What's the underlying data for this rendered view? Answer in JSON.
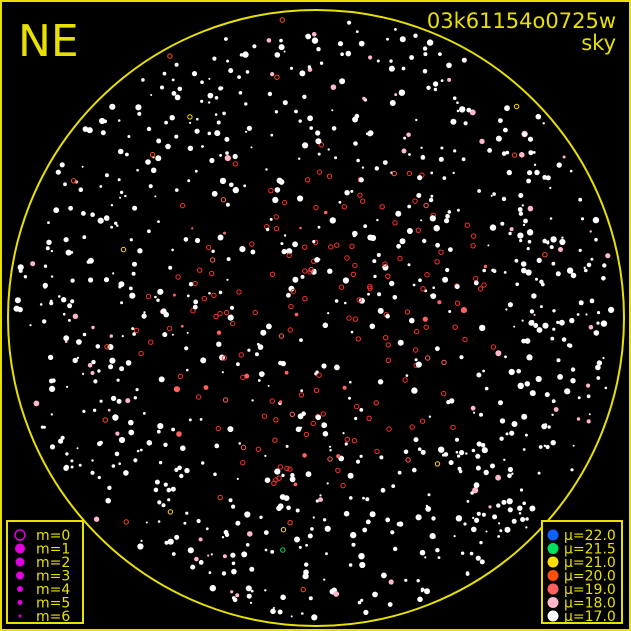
{
  "header": {
    "direction": "NE",
    "frame_id": "03k61154o0725w",
    "frame_type": "sky"
  },
  "colors": {
    "frame": "#e8e000",
    "background": "#000000",
    "magnitude_marker": "#e000e0"
  },
  "magnitude_legend": [
    {
      "label": "m=0",
      "style": "ring"
    },
    {
      "label": "m=1",
      "style": "dot"
    },
    {
      "label": "m=2",
      "style": "dot"
    },
    {
      "label": "m=3",
      "style": "dot"
    },
    {
      "label": "m=4",
      "style": "dot"
    },
    {
      "label": "m=5",
      "style": "dot"
    },
    {
      "label": "m=6",
      "style": "dot"
    }
  ],
  "surface_brightness_legend": [
    {
      "label": "μ=22.0",
      "color": "#1060ff"
    },
    {
      "label": "μ=21.5",
      "color": "#00e060"
    },
    {
      "label": "μ=21.0",
      "color": "#ffe000"
    },
    {
      "label": "μ=20.0",
      "color": "#ff5010"
    },
    {
      "label": "μ=19.0",
      "color": "#ff6060"
    },
    {
      "label": "μ=18.0",
      "color": "#ffb8c8"
    },
    {
      "label": "μ=17.0",
      "color": "#ffffff"
    }
  ]
}
